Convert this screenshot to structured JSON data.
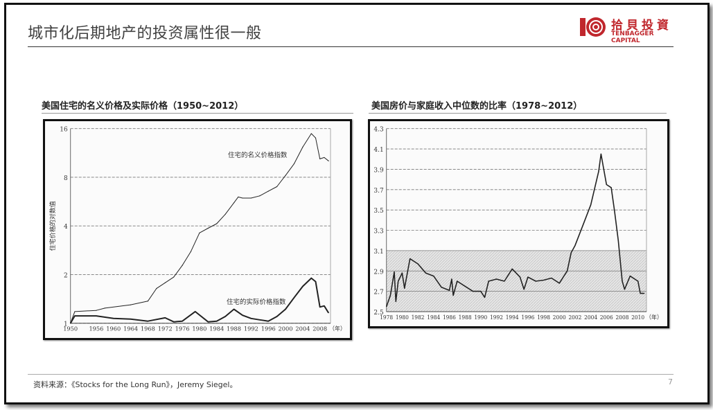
{
  "slide": {
    "title": "城市化后期地产的投资属性很一般",
    "logo": {
      "cn": "拾貝投資",
      "en": "TENBAGGER CAPITAL",
      "color": "#c0272d"
    },
    "source": "资料来源：《Stocks for the Long Run》，Jeremy Siegel。",
    "page_number": "7"
  },
  "chart_data": [
    {
      "type": "line",
      "title": "美国住宅的名义价格及实际价格（1950~2012）",
      "ylabel": "住宅价格的对数值",
      "xlabel": "",
      "x_unit": "（年）",
      "yscale": "log2",
      "ylim": [
        1,
        16
      ],
      "xlim": [
        1950,
        2010
      ],
      "yticks": [
        "1",
        "2",
        "4",
        "8",
        "16"
      ],
      "xticks": [
        "1950",
        "1956",
        "1960",
        "1964",
        "1968",
        "1972",
        "1976",
        "1980",
        "1984",
        "1988",
        "1992",
        "1996",
        "2000",
        "2004",
        "2008"
      ],
      "grid": true,
      "legend": "inline labels",
      "series": [
        {
          "name": "住宅的名义价格指数",
          "x": [
            1950,
            1951,
            1956,
            1958,
            1964,
            1968,
            1970,
            1972,
            1974,
            1976,
            1978,
            1980,
            1982,
            1984,
            1986,
            1988,
            1989,
            1990,
            1992,
            1994,
            1996,
            1998,
            2000,
            2002,
            2004,
            2006,
            2007,
            2008,
            2009,
            2010
          ],
          "y": [
            1.0,
            1.18,
            1.2,
            1.24,
            1.3,
            1.37,
            1.64,
            1.78,
            1.93,
            2.28,
            2.78,
            3.62,
            3.87,
            4.13,
            4.72,
            5.56,
            6.04,
            5.95,
            5.95,
            6.14,
            6.56,
            7.0,
            8.2,
            9.7,
            12.3,
            14.9,
            14.0,
            10.4,
            10.6,
            10.1
          ]
        },
        {
          "name": "住宅的实际价格指数",
          "x": [
            1950,
            1951,
            1956,
            1960,
            1964,
            1968,
            1972,
            1974,
            1976,
            1979,
            1982,
            1984,
            1986,
            1988,
            1990,
            1992,
            1994,
            1996,
            1998,
            2000,
            2002,
            2004,
            2006,
            2007,
            2008,
            2009,
            2010
          ],
          "y": [
            1.0,
            1.11,
            1.11,
            1.07,
            1.06,
            1.03,
            1.08,
            1.02,
            1.03,
            1.18,
            1.02,
            1.03,
            1.1,
            1.22,
            1.12,
            1.07,
            1.05,
            1.03,
            1.1,
            1.22,
            1.44,
            1.69,
            1.9,
            1.81,
            1.26,
            1.28,
            1.16
          ]
        }
      ]
    },
    {
      "type": "line",
      "title": "美国房价与家庭收入中位数的比率（1978~2012）",
      "xlabel": "",
      "ylabel": "",
      "x_unit": "（年）",
      "ylim": [
        2.5,
        4.3
      ],
      "xlim": [
        1978,
        2010.8
      ],
      "yticks": [
        "2.5",
        "2.7",
        "2.9",
        "3.1",
        "3.3",
        "3.5",
        "3.7",
        "3.9",
        "4.1",
        "4.3"
      ],
      "xticks": [
        "1978",
        "1980",
        "1982",
        "1984",
        "1986",
        "1988",
        "1990",
        "1992",
        "1994",
        "1996",
        "1998",
        "2000",
        "2002",
        "2004",
        "2006",
        "2008",
        "2010"
      ],
      "grid": true,
      "shaded_band": [
        2.5,
        3.1
      ],
      "series": [
        {
          "x": [
            1978,
            1978.5,
            1979,
            1979.2,
            1979.5,
            1980,
            1980.3,
            1981,
            1982,
            1983,
            1984,
            1985,
            1986,
            1986.3,
            1986.5,
            1987,
            1988,
            1989,
            1990,
            1990.5,
            1991,
            1992,
            1993,
            1994,
            1995,
            1995.5,
            1996,
            1997,
            1998,
            1999,
            2000,
            2000.5,
            2001,
            2001.5,
            2002,
            2003,
            2004,
            2005,
            2005.3,
            2005.6,
            2006,
            2006.6,
            2007,
            2007.5,
            2008,
            2008.3,
            2009,
            2010,
            2010.3,
            2010.8
          ],
          "y": [
            2.55,
            2.66,
            2.89,
            2.6,
            2.8,
            2.88,
            2.73,
            3.02,
            2.97,
            2.88,
            2.85,
            2.74,
            2.71,
            2.82,
            2.66,
            2.8,
            2.75,
            2.7,
            2.7,
            2.64,
            2.8,
            2.82,
            2.8,
            2.92,
            2.84,
            2.72,
            2.84,
            2.8,
            2.81,
            2.83,
            2.78,
            2.84,
            2.9,
            3.08,
            3.15,
            3.35,
            3.55,
            3.88,
            4.05,
            3.92,
            3.75,
            3.72,
            3.5,
            3.2,
            2.8,
            2.72,
            2.85,
            2.8,
            2.68,
            2.68
          ]
        }
      ]
    }
  ]
}
